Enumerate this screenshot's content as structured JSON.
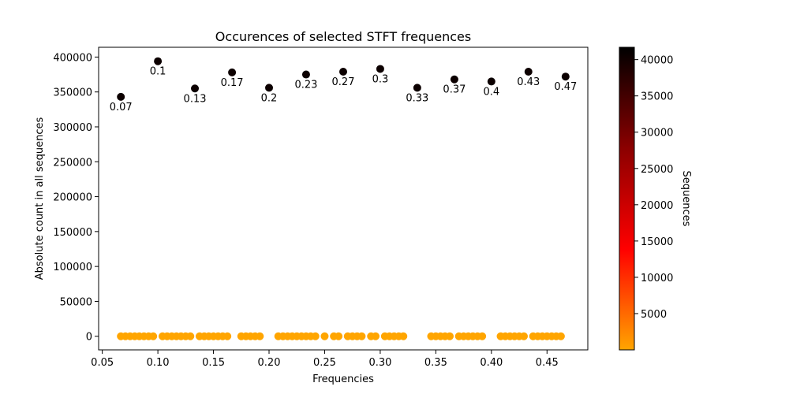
{
  "chart_data": {
    "type": "scatter",
    "title": "Occurences of selected STFT frequences",
    "xlabel": "Frequencies",
    "ylabel": "Absolute count in all sequences",
    "xlim": [
      0.0467,
      0.4867
    ],
    "ylim": [
      -19500,
      414000
    ],
    "x_ticks": [
      0.05,
      0.1,
      0.15,
      0.2,
      0.25,
      0.3,
      0.35,
      0.4,
      0.45
    ],
    "x_tick_labels": [
      "0.05",
      "0.10",
      "0.15",
      "0.20",
      "0.25",
      "0.30",
      "0.35",
      "0.40",
      "0.45"
    ],
    "y_ticks": [
      0,
      50000,
      100000,
      150000,
      200000,
      250000,
      300000,
      350000,
      400000
    ],
    "y_tick_labels": [
      "0",
      "50000",
      "100000",
      "150000",
      "200000",
      "250000",
      "300000",
      "350000",
      "400000"
    ],
    "grid": false,
    "colorbar": {
      "label": "Sequences",
      "range": [
        0,
        41700
      ],
      "ticks": [
        5000,
        10000,
        15000,
        20000,
        25000,
        30000,
        35000,
        40000
      ],
      "tick_labels": [
        "5000",
        "10000",
        "15000",
        "20000",
        "25000",
        "30000",
        "35000",
        "40000"
      ],
      "colormap": [
        "#ffa500",
        "#ff0000",
        "#8b0000",
        "#000000"
      ]
    },
    "labeled_points": [
      {
        "x": 0.0667,
        "y": 343000,
        "label": "0.07",
        "c": 40500
      },
      {
        "x": 0.1,
        "y": 394000,
        "label": "0.1",
        "c": 40500
      },
      {
        "x": 0.1333,
        "y": 355000,
        "label": "0.13",
        "c": 40500
      },
      {
        "x": 0.1667,
        "y": 378000,
        "label": "0.17",
        "c": 40500
      },
      {
        "x": 0.2,
        "y": 356000,
        "label": "0.2",
        "c": 40500
      },
      {
        "x": 0.2333,
        "y": 375000,
        "label": "0.23",
        "c": 40500
      },
      {
        "x": 0.2667,
        "y": 379000,
        "label": "0.27",
        "c": 40500
      },
      {
        "x": 0.3,
        "y": 383000,
        "label": "0.3",
        "c": 40500
      },
      {
        "x": 0.3333,
        "y": 356000,
        "label": "0.33",
        "c": 40500
      },
      {
        "x": 0.3667,
        "y": 368000,
        "label": "0.37",
        "c": 40500
      },
      {
        "x": 0.4,
        "y": 365000,
        "label": "0.4",
        "c": 40500
      },
      {
        "x": 0.4333,
        "y": 379000,
        "label": "0.43",
        "c": 40500
      },
      {
        "x": 0.4667,
        "y": 372000,
        "label": "0.47",
        "c": 40500
      }
    ],
    "low_points": {
      "y": 0,
      "c": 0,
      "x": [
        0.0667,
        0.0708,
        0.075,
        0.0792,
        0.0833,
        0.0875,
        0.0917,
        0.0958,
        0.1042,
        0.1083,
        0.1125,
        0.1167,
        0.1208,
        0.125,
        0.1292,
        0.1375,
        0.1417,
        0.1458,
        0.15,
        0.1542,
        0.1583,
        0.1625,
        0.175,
        0.1792,
        0.1833,
        0.1875,
        0.1917,
        0.2083,
        0.2125,
        0.2167,
        0.2208,
        0.225,
        0.2292,
        0.2333,
        0.2375,
        0.2417,
        0.25,
        0.2583,
        0.2625,
        0.2708,
        0.275,
        0.2792,
        0.2833,
        0.2917,
        0.2958,
        0.3042,
        0.3083,
        0.3125,
        0.3167,
        0.3208,
        0.3458,
        0.35,
        0.3542,
        0.3583,
        0.3625,
        0.3708,
        0.375,
        0.3792,
        0.3833,
        0.3875,
        0.3917,
        0.4083,
        0.4125,
        0.4167,
        0.4208,
        0.425,
        0.4292,
        0.4375,
        0.4417,
        0.4458,
        0.45,
        0.4542,
        0.4583,
        0.4625
      ]
    }
  }
}
